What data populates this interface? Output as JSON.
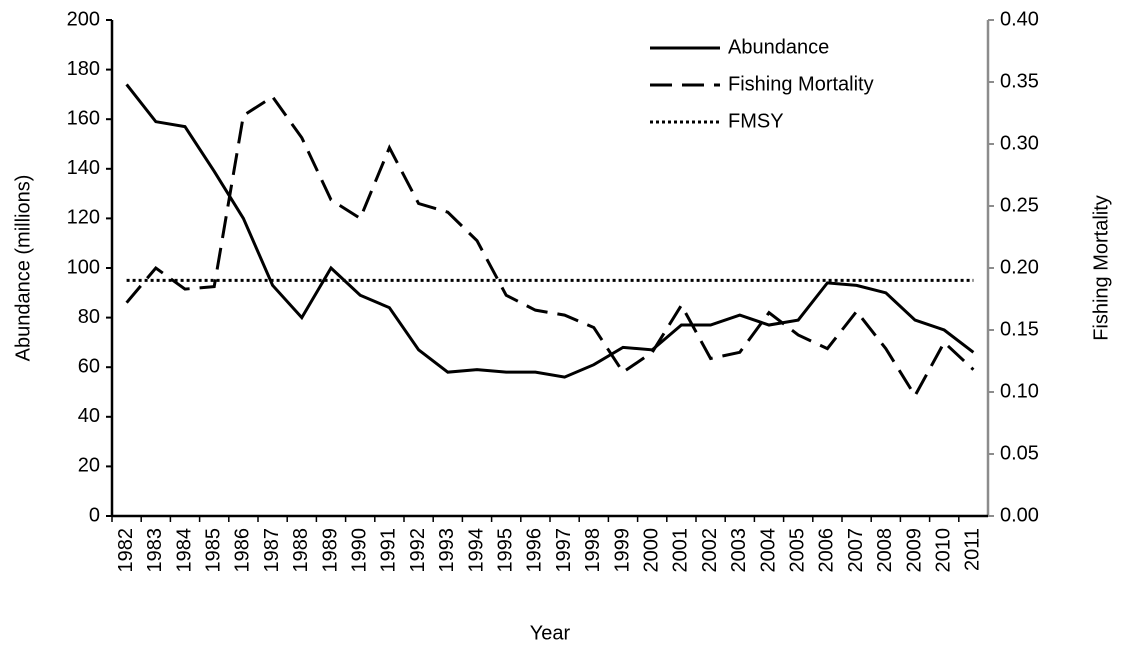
{
  "chart_data": {
    "type": "line",
    "x_label": "Year",
    "y_label": "Abundance (millions)",
    "y2_label": "Fishing Mortality",
    "categories": [
      "1982",
      "1983",
      "1984",
      "1985",
      "1986",
      "1987",
      "1988",
      "1989",
      "1990",
      "1991",
      "1992",
      "1993",
      "1994",
      "1995",
      "1996",
      "1997",
      "1998",
      "1999",
      "2000",
      "2001",
      "2002",
      "2003",
      "2004",
      "2005",
      "2006",
      "2007",
      "2008",
      "2009",
      "2010",
      "2011"
    ],
    "series": [
      {
        "name": "Abundance",
        "color": "#000000",
        "style": "solid",
        "values": [
          174,
          159,
          157,
          139,
          120,
          93,
          80,
          100,
          89,
          84,
          67,
          58,
          59,
          58,
          58,
          56,
          61,
          68,
          67,
          77,
          77,
          81,
          77,
          79,
          94,
          93,
          90,
          79,
          75,
          66
        ]
      },
      {
        "name": "Fishing Mortality",
        "color": "#000000",
        "style": "dashed",
        "axis": "y2",
        "values": [
          0.172,
          0.2,
          0.183,
          0.185,
          0.323,
          0.338,
          0.305,
          0.255,
          0.24,
          0.297,
          0.252,
          0.245,
          0.222,
          0.178,
          0.166,
          0.162,
          0.152,
          0.116,
          0.132,
          0.17,
          0.127,
          0.132,
          0.164,
          0.146,
          0.135,
          0.165,
          0.135,
          0.097,
          0.14,
          0.118
        ]
      },
      {
        "name": "FMSY",
        "color": "#000000",
        "style": "dotted",
        "axis": "y2",
        "values": [
          0.19,
          0.19,
          0.19,
          0.19,
          0.19,
          0.19,
          0.19,
          0.19,
          0.19,
          0.19,
          0.19,
          0.19,
          0.19,
          0.19,
          0.19,
          0.19,
          0.19,
          0.19,
          0.19,
          0.19,
          0.19,
          0.19,
          0.19,
          0.19,
          0.19,
          0.19,
          0.19,
          0.19,
          0.19,
          0.19
        ]
      }
    ],
    "ylim": [
      0,
      200
    ],
    "yticks": [
      0,
      20,
      40,
      60,
      80,
      100,
      120,
      140,
      160,
      180,
      200
    ],
    "y2lim": [
      0,
      0.4
    ],
    "y2ticks": [
      {
        "value": 0,
        "label": "0.00"
      },
      0.05,
      {
        "value": 0.1,
        "label": "0.10"
      },
      0.15,
      {
        "value": 0.2,
        "label": "0.20"
      },
      0.25,
      {
        "value": 0.3,
        "label": "0.30"
      },
      0.35,
      {
        "value": 0.4,
        "label": "0.40"
      }
    ],
    "y2_axis_color": "#8c8c8c",
    "legend": "upper right"
  }
}
